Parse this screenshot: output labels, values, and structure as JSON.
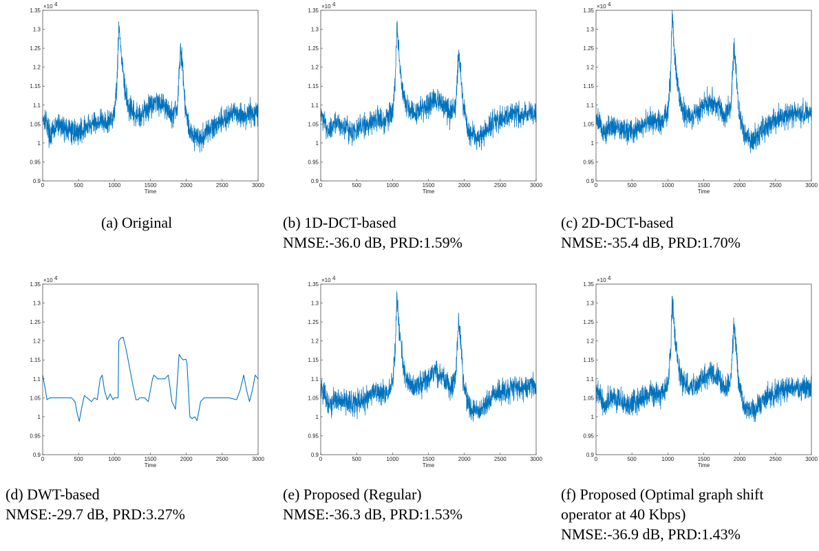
{
  "chart_data": [
    {
      "type": "line",
      "id": "a",
      "caption_lines": [
        "(a) Original"
      ],
      "xlabel": "Time",
      "ylabel": "",
      "xlim": [
        0,
        3000
      ],
      "ylim": [
        9000,
        13500
      ],
      "multiplier_label": "×10",
      "multiplier_exp": "4",
      "xticks": [
        "0",
        "500",
        "1000",
        "1500",
        "2000",
        "2500",
        "3000"
      ],
      "yticks": [
        "0.9",
        "0.95",
        "1",
        "1.05",
        "1.1",
        "1.15",
        "1.2",
        "1.25",
        "1.3",
        "1.35"
      ],
      "grid": false,
      "color": "#0072BD",
      "series": [
        {
          "x": [
            0,
            50,
            100,
            150,
            200,
            300,
            400,
            500,
            600,
            700,
            800,
            900,
            1000,
            1040,
            1060,
            1080,
            1100,
            1150,
            1200,
            1300,
            1400,
            1500,
            1600,
            1700,
            1800,
            1880,
            1920,
            1950,
            1980,
            2050,
            2100,
            2200,
            2300,
            2400,
            2500,
            2600,
            2700,
            2800,
            2900,
            3000
          ],
          "y": [
            10700,
            10600,
            10200,
            10300,
            10500,
            10400,
            10300,
            10300,
            10400,
            10500,
            10600,
            10500,
            10800,
            11800,
            13200,
            12700,
            12200,
            11300,
            10900,
            10700,
            10800,
            11000,
            11100,
            11000,
            10700,
            11000,
            12500,
            12000,
            11000,
            10300,
            10200,
            10100,
            10300,
            10500,
            10600,
            10700,
            10800,
            10700,
            10800,
            10800
          ]
        }
      ]
    },
    {
      "type": "line",
      "id": "b",
      "caption_lines": [
        "(b) 1D-DCT-based",
        "NMSE:-36.0 dB, PRD:1.59%"
      ],
      "xlabel": "Time",
      "ylabel": "",
      "xlim": [
        0,
        3000
      ],
      "ylim": [
        9000,
        13500
      ],
      "multiplier_label": "×10",
      "multiplier_exp": "4",
      "xticks": [
        "0",
        "500",
        "1000",
        "1500",
        "2000",
        "2500",
        "3000"
      ],
      "yticks": [
        "0.9",
        "0.95",
        "1",
        "1.05",
        "1.1",
        "1.15",
        "1.2",
        "1.25",
        "1.3",
        "1.35"
      ],
      "grid": false,
      "color": "#0072BD",
      "series": [
        {
          "x": [
            0,
            50,
            100,
            150,
            200,
            300,
            400,
            500,
            600,
            700,
            800,
            900,
            1000,
            1040,
            1060,
            1080,
            1100,
            1150,
            1200,
            1300,
            1400,
            1500,
            1600,
            1700,
            1800,
            1880,
            1920,
            1950,
            1980,
            2050,
            2100,
            2200,
            2300,
            2400,
            2500,
            2600,
            2700,
            2800,
            2900,
            3000
          ],
          "y": [
            10750,
            10650,
            10300,
            10350,
            10550,
            10450,
            10350,
            10350,
            10450,
            10550,
            10650,
            10550,
            10850,
            11700,
            13100,
            12600,
            12100,
            11300,
            10950,
            10750,
            10850,
            11050,
            11150,
            11050,
            10750,
            11000,
            12400,
            11900,
            11000,
            10350,
            10200,
            10150,
            10350,
            10550,
            10650,
            10700,
            10800,
            10700,
            10800,
            10800
          ]
        }
      ]
    },
    {
      "type": "line",
      "id": "c",
      "caption_lines": [
        "(c) 2D-DCT-based",
        "NMSE:-35.4 dB, PRD:1.70%"
      ],
      "xlabel": "Time",
      "ylabel": "",
      "xlim": [
        0,
        3000
      ],
      "ylim": [
        9000,
        13500
      ],
      "multiplier_label": "×10",
      "multiplier_exp": "4",
      "xticks": [
        "0",
        "500",
        "1000",
        "1500",
        "2000",
        "2500",
        "3000"
      ],
      "yticks": [
        "0.9",
        "0.95",
        "1",
        "1.05",
        "1.1",
        "1.15",
        "1.2",
        "1.25",
        "1.3",
        "1.35"
      ],
      "grid": false,
      "color": "#0072BD",
      "series": [
        {
          "x": [
            0,
            50,
            100,
            150,
            200,
            300,
            400,
            500,
            600,
            700,
            800,
            900,
            1000,
            1040,
            1060,
            1080,
            1100,
            1150,
            1200,
            1300,
            1400,
            1500,
            1600,
            1700,
            1800,
            1880,
            1920,
            1950,
            1980,
            2050,
            2100,
            2200,
            2300,
            2400,
            2500,
            2600,
            2700,
            2800,
            2900,
            3000
          ],
          "y": [
            10700,
            10600,
            10250,
            10300,
            10500,
            10400,
            10300,
            10300,
            10400,
            10500,
            10600,
            10500,
            10800,
            11800,
            13500,
            12800,
            12200,
            11300,
            10900,
            10700,
            10800,
            11000,
            11100,
            11000,
            10700,
            11000,
            12500,
            12000,
            11000,
            10300,
            10100,
            10100,
            10300,
            10500,
            10600,
            10700,
            10800,
            10700,
            10800,
            10800
          ]
        }
      ]
    },
    {
      "type": "line",
      "id": "d",
      "caption_lines": [
        "(d) DWT-based",
        "NMSE:-29.7 dB, PRD:3.27%"
      ],
      "xlabel": "Time",
      "ylabel": "",
      "xlim": [
        0,
        3000
      ],
      "ylim": [
        9000,
        13500
      ],
      "multiplier_label": "×10",
      "multiplier_exp": "4",
      "xticks": [
        "0",
        "500",
        "1000",
        "1500",
        "2000",
        "2500",
        "3000"
      ],
      "yticks": [
        "0.9",
        "0.95",
        "1",
        "1.05",
        "1.1",
        "1.15",
        "1.2",
        "1.25",
        "1.3",
        "1.35"
      ],
      "grid": false,
      "color": "#0072BD",
      "series": [
        {
          "x": [
            0,
            30,
            60,
            100,
            150,
            200,
            300,
            400,
            450,
            480,
            510,
            540,
            580,
            620,
            680,
            720,
            760,
            800,
            830,
            860,
            900,
            940,
            980,
            1000,
            1040,
            1050,
            1060,
            1090,
            1120,
            1160,
            1200,
            1250,
            1300,
            1330,
            1350,
            1380,
            1420,
            1470,
            1500,
            1530,
            1550,
            1600,
            1650,
            1700,
            1750,
            1800,
            1850,
            1900,
            1930,
            1960,
            1990,
            2000,
            2010,
            2050,
            2080,
            2120,
            2150,
            2200,
            2250,
            2300,
            2400,
            2500,
            2600,
            2700,
            2750,
            2800,
            2840,
            2880,
            2920,
            2960,
            3000
          ],
          "y": [
            11100,
            10800,
            10450,
            10500,
            10500,
            10500,
            10500,
            10500,
            10400,
            10100,
            9880,
            10200,
            10560,
            10500,
            10400,
            10500,
            10450,
            11000,
            11100,
            10700,
            10450,
            10600,
            10450,
            10500,
            10500,
            10500,
            12000,
            12080,
            12100,
            11800,
            11400,
            10900,
            10450,
            10450,
            10500,
            10500,
            10500,
            10400,
            10700,
            11000,
            11100,
            11000,
            11000,
            11000,
            11100,
            10400,
            10200,
            11650,
            11550,
            11500,
            11520,
            11500,
            11400,
            10000,
            9950,
            10000,
            9900,
            10400,
            10500,
            10500,
            10500,
            10500,
            10500,
            10450,
            10700,
            11100,
            10700,
            10400,
            10700,
            11100,
            11000
          ]
        }
      ]
    },
    {
      "type": "line",
      "id": "e",
      "caption_lines": [
        "(e) Proposed (Regular)",
        "NMSE:-36.3 dB, PRD:1.53%"
      ],
      "xlabel": "Time",
      "ylabel": "",
      "xlim": [
        0,
        3000
      ],
      "ylim": [
        9000,
        13500
      ],
      "multiplier_label": "×10",
      "multiplier_exp": "4",
      "xticks": [
        "0",
        "500",
        "1000",
        "1500",
        "2000",
        "2500",
        "3000"
      ],
      "yticks": [
        "0.9",
        "0.95",
        "1",
        "1.05",
        "1.1",
        "1.15",
        "1.2",
        "1.25",
        "1.3",
        "1.35"
      ],
      "grid": false,
      "color": "#0072BD",
      "series": [
        {
          "x": [
            0,
            50,
            100,
            150,
            200,
            300,
            400,
            500,
            600,
            700,
            800,
            900,
            1000,
            1040,
            1060,
            1080,
            1100,
            1150,
            1200,
            1300,
            1400,
            1500,
            1600,
            1700,
            1800,
            1880,
            1920,
            1950,
            1980,
            2050,
            2100,
            2200,
            2300,
            2400,
            2500,
            2600,
            2700,
            2800,
            2900,
            3000
          ],
          "y": [
            10800,
            10700,
            10300,
            10300,
            10500,
            10450,
            10350,
            10350,
            10450,
            10550,
            10650,
            10550,
            10850,
            11800,
            13300,
            12700,
            12200,
            11300,
            10950,
            10750,
            10850,
            11050,
            11150,
            11050,
            10750,
            11000,
            12600,
            12000,
            11000,
            10350,
            10200,
            10150,
            10350,
            10550,
            10650,
            10700,
            10800,
            10700,
            10850,
            10850
          ]
        }
      ]
    },
    {
      "type": "line",
      "id": "f",
      "caption_lines": [
        "(f) Proposed (Optimal graph shift",
        "operator at 40 Kbps)",
        "NMSE:-36.9 dB, PRD:1.43%"
      ],
      "xlabel": "Time",
      "ylabel": "",
      "xlim": [
        0,
        3000
      ],
      "ylim": [
        9000,
        13500
      ],
      "multiplier_label": "×10",
      "multiplier_exp": "4",
      "xticks": [
        "0",
        "500",
        "1000",
        "1500",
        "2000",
        "2500",
        "3000"
      ],
      "yticks": [
        "0.9",
        "0.95",
        "1",
        "1.05",
        "1.1",
        "1.15",
        "1.2",
        "1.25",
        "1.3",
        "1.35"
      ],
      "grid": false,
      "color": "#0072BD",
      "series": [
        {
          "x": [
            0,
            50,
            100,
            150,
            200,
            300,
            400,
            500,
            600,
            700,
            800,
            900,
            1000,
            1040,
            1060,
            1080,
            1100,
            1150,
            1200,
            1300,
            1400,
            1500,
            1600,
            1700,
            1800,
            1880,
            1920,
            1950,
            1980,
            2050,
            2100,
            2200,
            2300,
            2400,
            2500,
            2600,
            2700,
            2800,
            2900,
            3000
          ],
          "y": [
            10750,
            10650,
            10300,
            10350,
            10550,
            10450,
            10350,
            10350,
            10450,
            10550,
            10650,
            10550,
            10850,
            11700,
            13100,
            12600,
            12100,
            11300,
            10950,
            10750,
            10850,
            11050,
            11150,
            11050,
            10750,
            11000,
            12400,
            11900,
            11000,
            10350,
            10200,
            10150,
            10350,
            10550,
            10650,
            10700,
            10800,
            10700,
            10800,
            10800
          ]
        }
      ]
    }
  ]
}
